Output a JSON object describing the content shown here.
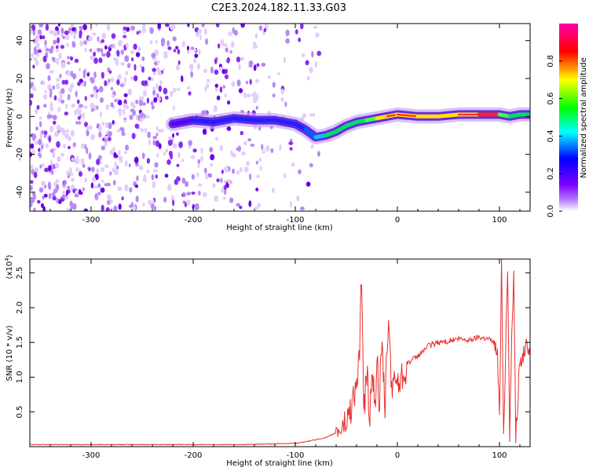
{
  "figure_title": "C2E3.2024.182.11.33.G03",
  "chart_data": [
    {
      "type": "heatmap",
      "title": "",
      "xlabel": "Height of straight line (km)",
      "ylabel": "Frequency (Hz)",
      "xlim": [
        -360,
        130
      ],
      "ylim": [
        -50,
        49
      ],
      "x_ticks": [
        -300,
        -200,
        -100,
        0,
        100
      ],
      "y_ticks": [
        -40,
        -20,
        0,
        20,
        40
      ],
      "colorbar": {
        "label": "Normalized spectral amplitude",
        "range": [
          0.0,
          1.0
        ],
        "ticks": [
          "0.0",
          "0.2",
          "0.4",
          "0.6",
          "0.8"
        ],
        "colormap": [
          "#ffffff",
          "#7f00ff",
          "#0000ff",
          "#00ffff",
          "#00ff00",
          "#ffff00",
          "#ff0000",
          "#ff00ff"
        ]
      },
      "signal_track": {
        "x": [
          -220,
          -200,
          -180,
          -160,
          -140,
          -120,
          -100,
          -90,
          -80,
          -70,
          -60,
          -50,
          -40,
          -30,
          -20,
          -10,
          0,
          20,
          40,
          60,
          80,
          100,
          110,
          120,
          130
        ],
        "y": [
          -4,
          -2,
          -3,
          -1,
          -2,
          -2,
          -4,
          -7,
          -11,
          -10,
          -8,
          -5,
          -3,
          -2,
          -1,
          0,
          1,
          0,
          0,
          1,
          1,
          1,
          0,
          1,
          1
        ],
        "amplitude": [
          0.05,
          0.08,
          0.12,
          0.15,
          0.15,
          0.12,
          0.1,
          0.15,
          0.3,
          0.5,
          0.6,
          0.55,
          0.6,
          0.7,
          0.8,
          0.85,
          0.9,
          0.85,
          0.8,
          0.85,
          0.95,
          0.9,
          0.6,
          0.5,
          0.5
        ]
      },
      "noise_region": {
        "x_from": -360,
        "x_to": -75
      }
    },
    {
      "type": "line",
      "title": "",
      "xlabel": "Height of straight line (km)",
      "ylabel": "SNR (10 * v/v)",
      "y_scale_label": "(x10",
      "y_scale_exp": "4",
      "y_scale_close": ")",
      "xlim": [
        -360,
        130
      ],
      "ylim": [
        0,
        2.7
      ],
      "x_ticks": [
        -300,
        -200,
        -100,
        0,
        100
      ],
      "y_ticks": [
        "0.5",
        "1.0",
        "1.5",
        "2.0",
        "2.5"
      ],
      "series": [
        {
          "color": "#e83030",
          "x": [
            -360,
            -300,
            -250,
            -200,
            -150,
            -120,
            -100,
            -90,
            -80,
            -70,
            -60,
            -50,
            -45,
            -40,
            -37,
            -35,
            -33,
            -30,
            -27,
            -25,
            -22,
            -20,
            -18,
            -15,
            -12,
            -10,
            -8,
            -5,
            -3,
            0,
            5,
            10,
            20,
            30,
            40,
            50,
            60,
            70,
            80,
            90,
            95,
            98,
            100,
            102,
            104,
            106,
            108,
            110,
            112,
            114,
            116,
            120,
            125,
            130
          ],
          "y": [
            0.03,
            0.03,
            0.03,
            0.03,
            0.03,
            0.04,
            0.05,
            0.07,
            0.1,
            0.13,
            0.2,
            0.35,
            0.6,
            0.9,
            1.3,
            2.55,
            0.4,
            1.1,
            0.4,
            1.2,
            0.5,
            1.3,
            0.6,
            1.4,
            0.5,
            1.5,
            1.75,
            0.6,
            1.1,
            0.9,
            1.05,
            1.2,
            1.3,
            1.45,
            1.5,
            1.52,
            1.55,
            1.53,
            1.58,
            1.55,
            1.5,
            1.3,
            0.4,
            2.7,
            0.3,
            1.3,
            2.55,
            0.2,
            1.5,
            2.55,
            0.2,
            1.2,
            1.4,
            1.45
          ]
        }
      ]
    }
  ]
}
